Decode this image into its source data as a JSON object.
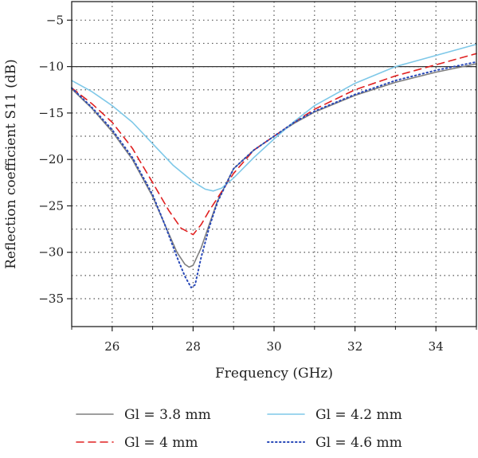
{
  "chart_data": {
    "type": "line",
    "xlabel": "Frequency (GHz)",
    "ylabel": "Reflection coefficient S11 (dB)",
    "xlim": [
      25,
      35
    ],
    "ylim": [
      -38,
      -3
    ],
    "xticks": [
      26,
      28,
      30,
      32,
      34
    ],
    "yticks": [
      -5,
      -10,
      -15,
      -20,
      -25,
      -30,
      -35
    ],
    "reference_line": -10,
    "grid": "dotted",
    "legend_position": "bottom",
    "series": [
      {
        "name": "Gl = 3.8 mm",
        "color": "#7f7f7f",
        "dash": "solid",
        "x": [
          25,
          25.5,
          26,
          26.5,
          27,
          27.3,
          27.6,
          27.8,
          27.9,
          28.0,
          28.2,
          28.4,
          28.6,
          29,
          29.5,
          30,
          30.5,
          31,
          32,
          33,
          34,
          35
        ],
        "y": [
          -12.4,
          -14.5,
          -17.0,
          -20.0,
          -24.0,
          -27.0,
          -30.0,
          -31.3,
          -31.6,
          -31.4,
          -29.5,
          -27.0,
          -24.5,
          -21.0,
          -19.0,
          -17.5,
          -16.1,
          -14.9,
          -13.1,
          -11.7,
          -10.6,
          -9.7
        ]
      },
      {
        "name": "Gl = 4 mm",
        "color": "#e02020",
        "dash": "dashed",
        "x": [
          25,
          25.5,
          26,
          26.5,
          27,
          27.4,
          27.7,
          28.0,
          28.2,
          28.4,
          28.7,
          29,
          29.5,
          30,
          30.5,
          31,
          32,
          33,
          34,
          35
        ],
        "y": [
          -12.3,
          -14.0,
          -16.0,
          -18.8,
          -22.5,
          -25.5,
          -27.4,
          -28.1,
          -27.0,
          -25.5,
          -23.5,
          -21.5,
          -19.0,
          -17.5,
          -16.0,
          -14.6,
          -12.5,
          -11.0,
          -9.8,
          -8.6
        ]
      },
      {
        "name": "Gl = 4.2 mm",
        "color": "#7ec8e8",
        "dash": "solid",
        "x": [
          25,
          25.5,
          26,
          26.5,
          27,
          27.5,
          28,
          28.3,
          28.5,
          28.7,
          29,
          29.5,
          30,
          30.5,
          31,
          32,
          33,
          34,
          35
        ],
        "y": [
          -11.5,
          -12.7,
          -14.2,
          -16.0,
          -18.3,
          -20.6,
          -22.4,
          -23.2,
          -23.4,
          -23.1,
          -22.0,
          -19.8,
          -17.8,
          -15.9,
          -14.2,
          -11.8,
          -10.0,
          -8.8,
          -7.6
        ]
      },
      {
        "name": "Gl = 4.6 mm",
        "color": "#2848b8",
        "dash": "dotted",
        "x": [
          25,
          25.5,
          26,
          26.5,
          27,
          27.3,
          27.6,
          27.8,
          27.95,
          28.05,
          28.2,
          28.4,
          28.6,
          29,
          29.5,
          30,
          30.5,
          31,
          32,
          33,
          34,
          35
        ],
        "y": [
          -12.3,
          -14.4,
          -16.8,
          -19.8,
          -23.8,
          -27.0,
          -30.5,
          -32.6,
          -33.8,
          -33.5,
          -30.5,
          -27.3,
          -24.6,
          -21.0,
          -19.0,
          -17.5,
          -16.0,
          -14.8,
          -13.0,
          -11.5,
          -10.4,
          -9.5
        ]
      }
    ]
  }
}
